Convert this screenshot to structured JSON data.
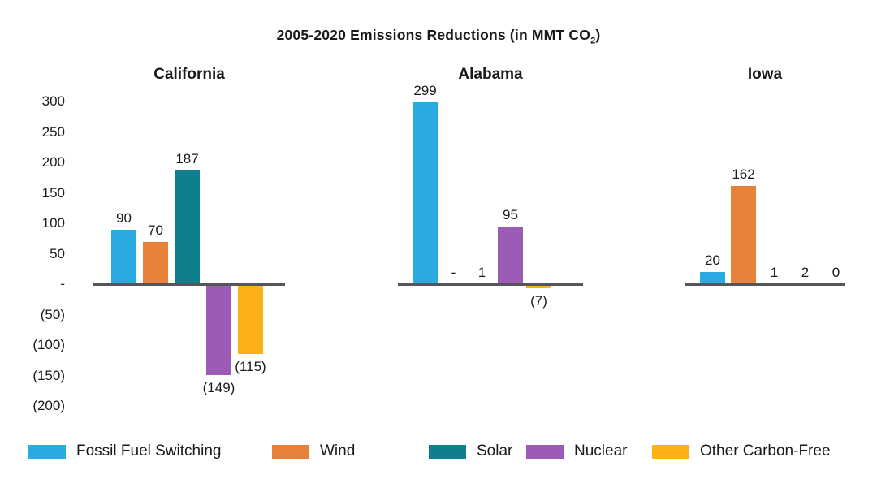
{
  "header": {
    "title_prefix": "2005-2020 Emissions Reductions (in MMT CO",
    "title_subscript": "2",
    "title_suffix": ")"
  },
  "chart_data": {
    "type": "bar",
    "title": "2005-2020 Emissions Reductions (in MMT CO2)",
    "xlabel": "",
    "ylabel": "",
    "ylim": [
      -200,
      300
    ],
    "grid": false,
    "legend_position": "bottom",
    "negative_format": "parentheses",
    "y_ticks": [
      {
        "value": 300,
        "label": "300"
      },
      {
        "value": 250,
        "label": "250"
      },
      {
        "value": 200,
        "label": "200"
      },
      {
        "value": 150,
        "label": "150"
      },
      {
        "value": 100,
        "label": "100"
      },
      {
        "value": 50,
        "label": "50"
      },
      {
        "value": 0,
        "label": "-"
      },
      {
        "value": -50,
        "label": "(50)"
      },
      {
        "value": -100,
        "label": "(100)"
      },
      {
        "value": -150,
        "label": "(150)"
      },
      {
        "value": -200,
        "label": "(200)"
      }
    ],
    "series": [
      {
        "name": "Fossil Fuel Switching",
        "color": "#29ABE2"
      },
      {
        "name": "Wind",
        "color": "#E8823B"
      },
      {
        "name": "Solar",
        "color": "#0E7F8C"
      },
      {
        "name": "Nuclear",
        "color": "#9C5BB5"
      },
      {
        "name": "Other Carbon-Free",
        "color": "#FBB116"
      }
    ],
    "groups": [
      {
        "name": "California",
        "values": [
          90,
          70,
          187,
          -149,
          -115
        ],
        "value_labels": [
          "90",
          "70",
          "187",
          "(149)",
          "(115)"
        ]
      },
      {
        "name": "Alabama",
        "values": [
          299,
          0,
          1,
          95,
          -7
        ],
        "value_labels": [
          "299",
          "-",
          "1",
          "95",
          "(7)"
        ]
      },
      {
        "name": "Iowa",
        "values": [
          20,
          162,
          1,
          2,
          0
        ],
        "value_labels": [
          "20",
          "162",
          "1",
          "2",
          "0"
        ]
      }
    ]
  },
  "colors": {
    "background": "#FFFFFF",
    "axis_line": "#55565A",
    "text": "#1A1A1A"
  }
}
